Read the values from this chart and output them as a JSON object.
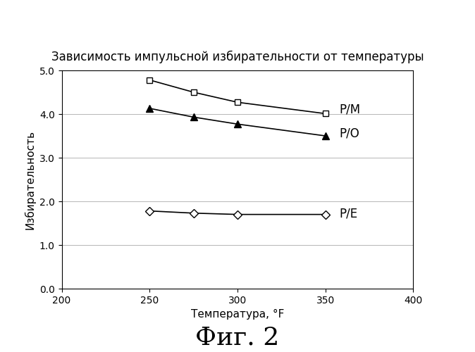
{
  "title": "Зависимость импульсной избирательности от температуры",
  "xlabel": "Температура, °F",
  "ylabel": "Избирательность",
  "figcaption": "Фиг. 2",
  "xlim": [
    200,
    400
  ],
  "ylim": [
    0.0,
    5.0
  ],
  "xticks": [
    200,
    250,
    300,
    350,
    400
  ],
  "yticks": [
    0.0,
    1.0,
    2.0,
    3.0,
    4.0,
    5.0
  ],
  "series": [
    {
      "label": "P/M",
      "x": [
        250,
        275,
        300,
        350
      ],
      "y": [
        4.78,
        4.5,
        4.27,
        4.01
      ],
      "marker": "s",
      "marker_facecolor": "white",
      "marker_edgecolor": "black",
      "line_color": "black",
      "markersize": 6
    },
    {
      "label": "P/O",
      "x": [
        250,
        275,
        300,
        350
      ],
      "y": [
        4.13,
        3.93,
        3.77,
        3.5
      ],
      "marker": "^",
      "marker_facecolor": "black",
      "marker_edgecolor": "black",
      "line_color": "black",
      "markersize": 7
    },
    {
      "label": "P/E",
      "x": [
        250,
        275,
        300,
        350
      ],
      "y": [
        1.78,
        1.73,
        1.7,
        1.7
      ],
      "marker": "D",
      "marker_facecolor": "white",
      "marker_edgecolor": "black",
      "line_color": "black",
      "markersize": 6
    }
  ],
  "label_positions": {
    "P/M": [
      358,
      4.1
    ],
    "P/O": [
      358,
      3.55
    ],
    "P/E": [
      358,
      1.72
    ]
  },
  "background_color": "#ffffff",
  "title_fontsize": 12,
  "axis_label_fontsize": 11,
  "tick_fontsize": 10,
  "annotation_fontsize": 12,
  "caption_fontsize": 26
}
